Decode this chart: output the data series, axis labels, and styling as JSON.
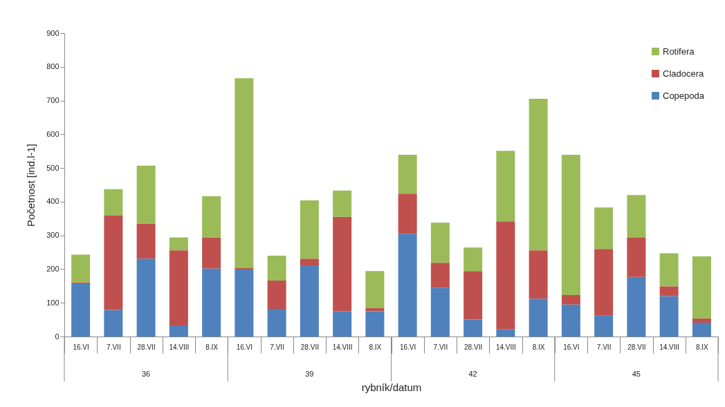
{
  "chart_data": {
    "type": "bar",
    "stacked": true,
    "xlabel": "rybník/datum",
    "ylabel": "Početnost [ind.l-1]",
    "categories": [
      "16.VI",
      "7.VII",
      "28.VII",
      "14.VIII",
      "8.IX",
      "16.VI",
      "7.VII",
      "28.VII",
      "14.VIII",
      "8.IX",
      "16.VI",
      "7.VII",
      "28.VII",
      "14.VIII",
      "8.IX",
      "16.VI",
      "7.VII",
      "28.VII",
      "14.VIII",
      "8.IX"
    ],
    "series": [
      {
        "name": "Copepoda",
        "color": "#4f81bd",
        "values": [
          158,
          79,
          231,
          33,
          202,
          199,
          82,
          211,
          75,
          75,
          305,
          145,
          50,
          21,
          112,
          95,
          62,
          177,
          120,
          41
        ]
      },
      {
        "name": "Cladocera",
        "color": "#c0504d",
        "values": [
          3,
          280,
          103,
          223,
          92,
          4,
          84,
          20,
          280,
          9,
          119,
          74,
          144,
          321,
          144,
          28,
          198,
          116,
          29,
          13
        ]
      },
      {
        "name": "Rotifera",
        "color": "#9bbb59",
        "values": [
          82,
          78,
          173,
          38,
          122,
          563,
          74,
          173,
          78,
          110,
          115,
          119,
          70,
          209,
          449,
          416,
          123,
          127,
          98,
          184
        ]
      }
    ],
    "ylim": [
      0,
      900
    ],
    "yticks": [
      0,
      100,
      200,
      300,
      400,
      500,
      600,
      700,
      800,
      900
    ],
    "grid": false,
    "legend": "top right",
    "annotations": [
      "36",
      "39",
      "42",
      "45"
    ]
  }
}
